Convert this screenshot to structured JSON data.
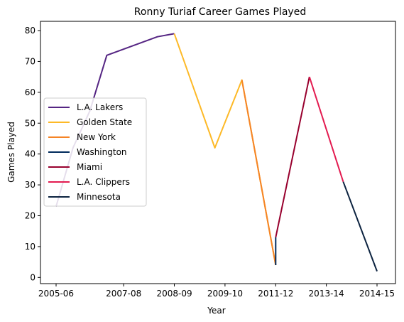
{
  "chart_data": {
    "type": "line",
    "title": "Ronny Turiaf Career Games Played",
    "xlabel": "Year",
    "ylabel": "Games Played",
    "x_ticks": [
      "2005-06",
      "2007-08",
      "2008-09",
      "2009-10",
      "2011-12",
      "2013-14",
      "2014-15"
    ],
    "x_tick_positions": [
      2005.5,
      2007.5,
      2009.0,
      2010.5,
      2012.0,
      2013.5,
      2015.0
    ],
    "xlim": [
      2005.5,
      2015.0
    ],
    "y_ticks": [
      0,
      10,
      20,
      30,
      40,
      50,
      60,
      70,
      80
    ],
    "ylim": [
      -2,
      83
    ],
    "grid": false,
    "legend_position": "center-left",
    "series": [
      {
        "name": "L.A. Lakers",
        "color": "#552583",
        "x": [
          2005.5,
          2006.0,
          2006.5,
          2007.0,
          2008.5,
          2009.0
        ],
        "y": [
          23,
          42,
          54,
          72,
          78,
          79
        ]
      },
      {
        "name": "Golden State",
        "color": "#FDB927",
        "x": [
          2009.0,
          2010.2,
          2011.0,
          2012.0
        ],
        "y": [
          79,
          42,
          64,
          4
        ]
      },
      {
        "name": "New York",
        "color": "#F58426",
        "x": [
          2011.0,
          2012.0
        ],
        "y": [
          64,
          4
        ]
      },
      {
        "name": "Washington",
        "color": "#002B5C",
        "x": [
          2012.0,
          2012.0
        ],
        "y": [
          4,
          13
        ]
      },
      {
        "name": "Miami",
        "color": "#98002E",
        "x": [
          2012.0,
          2013.0
        ],
        "y": [
          13,
          65
        ]
      },
      {
        "name": "L.A. Clippers",
        "color": "#E31B50",
        "x": [
          2013.0,
          2014.0
        ],
        "y": [
          65,
          31
        ]
      },
      {
        "name": "Minnesota",
        "color": "#0C2340",
        "x": [
          2014.0,
          2015.0
        ],
        "y": [
          31,
          2
        ]
      }
    ]
  }
}
